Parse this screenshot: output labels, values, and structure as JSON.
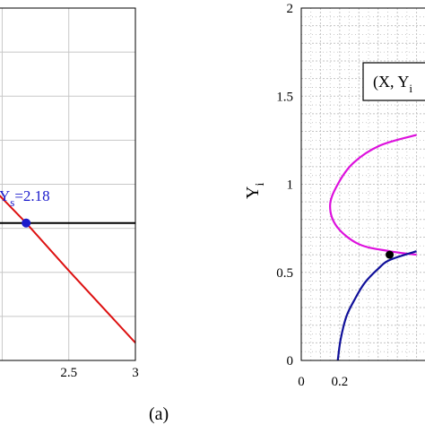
{
  "panel_label": "(a)",
  "chart_data": [
    {
      "type": "line",
      "xlim": [
        1.95,
        3
      ],
      "ylim": [
        0,
        2
      ],
      "x_ticks": [
        "2.5",
        "3"
      ],
      "x_tick_values": [
        2.5,
        3
      ],
      "grid": true,
      "annotation": {
        "symbol": "Y",
        "subscript": "s",
        "text": "=2.18",
        "x": 2.18,
        "y": 0.78
      },
      "series": [
        {
          "color": "#000000",
          "x": [
            1.95,
            3.0
          ],
          "y": [
            0.78,
            0.78
          ]
        },
        {
          "color": "#dd1111",
          "x": [
            1.95,
            2.18,
            2.5,
            3.0
          ],
          "y": [
            0.96,
            0.78,
            0.51,
            0.1
          ]
        }
      ],
      "markers": [
        {
          "x": 2.18,
          "y": 0.78,
          "color": "#1a1acc"
        }
      ]
    },
    {
      "type": "line",
      "ylabel": "Y",
      "ylabel_sub": "i",
      "xlim": [
        0,
        0.7
      ],
      "ylim": [
        0,
        2
      ],
      "x_ticks": [
        "0",
        "0.2"
      ],
      "x_tick_values": [
        0,
        0.2
      ],
      "y_ticks": [
        "0",
        "0.5",
        "1",
        "1.5",
        "2"
      ],
      "y_tick_values": [
        0,
        0.5,
        1,
        1.5,
        2
      ],
      "grid": true,
      "legend_box": {
        "text": "(X, Y",
        "subscript": "i"
      },
      "series": [
        {
          "color": "#dd11dd",
          "x": [
            0.6,
            0.41,
            0.27,
            0.19,
            0.15,
            0.185,
            0.3,
            0.46,
            0.6
          ],
          "y": [
            1.28,
            1.22,
            1.12,
            1.0,
            0.88,
            0.76,
            0.66,
            0.62,
            0.6
          ]
        },
        {
          "color": "#10109a",
          "x": [
            0.19,
            0.205,
            0.235,
            0.28,
            0.33,
            0.4,
            0.46,
            0.6
          ],
          "y": [
            0.0,
            0.12,
            0.25,
            0.35,
            0.44,
            0.52,
            0.57,
            0.62
          ]
        }
      ],
      "markers": [
        {
          "x": 0.46,
          "y": 0.6,
          "color": "#000000"
        }
      ]
    }
  ]
}
